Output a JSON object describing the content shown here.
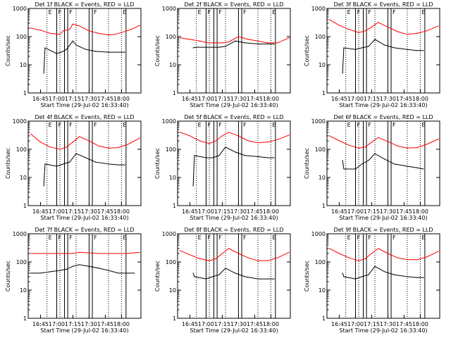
{
  "figure": {
    "common_xlabel": "Start Time (29-Jul-02 16:33:40)",
    "ylabel": "Counts/sec",
    "x_ticks": [
      "16:45",
      "17:00",
      "17:15",
      "17:30",
      "17:45",
      "18:00"
    ],
    "y_ticks": [
      "1",
      "10",
      "100",
      "1000"
    ],
    "flag_labels": [
      "E",
      "F",
      "F",
      "F",
      "E"
    ]
  },
  "chart_data": [
    {
      "type": "line",
      "title": "Det 1f BLACK = Events, RED = LLD",
      "xlabel": "Start Time (29-Jul-02 16:33:40)",
      "ylabel": "Counts/sec",
      "xlim": [
        16.56,
        18.3
      ],
      "ylim": [
        1,
        1000
      ],
      "yscale": "log",
      "series": [
        {
          "name": "LLD",
          "color": "#ff0000",
          "x": [
            16.6,
            16.75,
            16.9,
            17.05,
            17.1,
            17.2,
            17.25,
            17.35,
            17.5,
            17.65,
            17.8,
            17.9,
            18.0,
            18.15,
            18.28
          ],
          "values": [
            200,
            170,
            130,
            120,
            160,
            180,
            280,
            240,
            160,
            130,
            115,
            120,
            140,
            180,
            250
          ]
        },
        {
          "name": "Events",
          "color": "#000000",
          "x": [
            16.8,
            16.82,
            17.0,
            17.1,
            17.15,
            17.25,
            17.3,
            17.45,
            17.6,
            17.8,
            17.95,
            18.05
          ],
          "values": [
            5,
            40,
            25,
            30,
            35,
            70,
            50,
            35,
            30,
            28,
            28,
            28
          ]
        }
      ],
      "vlines_solid": [
        17.0,
        17.12,
        17.17,
        17.5,
        17.55,
        18.07
      ],
      "vlines_dotted": [
        16.85,
        17.05,
        17.3,
        17.8,
        18.0
      ]
    },
    {
      "type": "line",
      "title": "Det 2f BLACK = Events, RED = LLD",
      "xlabel": "Start Time (29-Jul-02 16:33:40)",
      "ylabel": "Counts/sec",
      "xlim": [
        16.56,
        18.3
      ],
      "ylim": [
        1,
        1000
      ],
      "yscale": "log",
      "series": [
        {
          "name": "LLD",
          "color": "#ff0000",
          "x": [
            16.6,
            16.75,
            16.9,
            17.05,
            17.15,
            17.25,
            17.35,
            17.5,
            17.65,
            17.8,
            17.95,
            18.1,
            18.28
          ],
          "values": [
            90,
            80,
            70,
            60,
            60,
            60,
            65,
            100,
            80,
            70,
            60,
            60,
            90
          ]
        },
        {
          "name": "Events",
          "color": "#000000",
          "x": [
            16.8,
            16.85,
            17.0,
            17.1,
            17.2,
            17.3,
            17.45,
            17.6,
            17.8,
            17.95,
            18.05
          ],
          "values": [
            40,
            42,
            42,
            42,
            42,
            45,
            70,
            60,
            55,
            55,
            55
          ]
        }
      ],
      "vlines_solid": [
        17.0,
        17.12,
        17.17,
        17.5,
        17.55,
        18.07
      ],
      "vlines_dotted": [
        16.85,
        17.05,
        17.3,
        17.8,
        18.0
      ]
    },
    {
      "type": "line",
      "title": "Det 3f BLACK = Events, RED = LLD",
      "xlabel": "Start Time (29-Jul-02 16:33:40)",
      "ylabel": "Counts/sec",
      "xlim": [
        16.56,
        18.3
      ],
      "ylim": [
        1,
        1000
      ],
      "yscale": "log",
      "series": [
        {
          "name": "LLD",
          "color": "#ff0000",
          "x": [
            16.6,
            16.75,
            16.9,
            17.05,
            17.15,
            17.25,
            17.35,
            17.5,
            17.65,
            17.8,
            17.95,
            18.1,
            18.28
          ],
          "values": [
            400,
            250,
            180,
            140,
            160,
            220,
            320,
            220,
            150,
            120,
            130,
            160,
            240
          ]
        },
        {
          "name": "Events",
          "color": "#000000",
          "x": [
            16.8,
            16.82,
            17.0,
            17.1,
            17.2,
            17.3,
            17.45,
            17.6,
            17.8,
            17.95,
            18.05
          ],
          "values": [
            5,
            40,
            35,
            40,
            45,
            80,
            50,
            40,
            35,
            32,
            32
          ]
        }
      ],
      "vlines_solid": [
        17.0,
        17.12,
        17.17,
        17.5,
        17.55,
        18.07
      ],
      "vlines_dotted": [
        16.85,
        17.05,
        17.3,
        17.8,
        18.0
      ]
    },
    {
      "type": "line",
      "title": "Det 4f BLACK = Events, RED = LLD",
      "xlabel": "Start Time (29-Jul-02 16:33:40)",
      "ylabel": "Counts/sec",
      "xlim": [
        16.56,
        18.3
      ],
      "ylim": [
        1,
        1000
      ],
      "yscale": "log",
      "series": [
        {
          "name": "LLD",
          "color": "#ff0000",
          "x": [
            16.6,
            16.75,
            16.9,
            17.05,
            17.15,
            17.25,
            17.35,
            17.5,
            17.65,
            17.8,
            17.95,
            18.1,
            18.28
          ],
          "values": [
            350,
            180,
            120,
            100,
            120,
            180,
            280,
            200,
            130,
            110,
            115,
            150,
            250
          ]
        },
        {
          "name": "Events",
          "color": "#000000",
          "x": [
            16.8,
            16.82,
            17.0,
            17.1,
            17.2,
            17.3,
            17.45,
            17.6,
            17.8,
            17.95,
            18.05
          ],
          "values": [
            5,
            30,
            25,
            30,
            35,
            70,
            50,
            35,
            30,
            28,
            28
          ]
        }
      ],
      "vlines_solid": [
        17.0,
        17.12,
        17.17,
        17.5,
        17.55,
        18.07
      ],
      "vlines_dotted": [
        16.85,
        17.05,
        17.3,
        17.8,
        18.0
      ]
    },
    {
      "type": "line",
      "title": "Det 5f BLACK = Events, RED = LLD",
      "xlabel": "Start Time (29-Jul-02 16:33:40)",
      "ylabel": "Counts/sec",
      "xlim": [
        16.56,
        18.3
      ],
      "ylim": [
        1,
        1000
      ],
      "yscale": "log",
      "series": [
        {
          "name": "LLD",
          "color": "#ff0000",
          "x": [
            16.6,
            16.75,
            16.9,
            17.05,
            17.15,
            17.25,
            17.35,
            17.5,
            17.65,
            17.8,
            17.95,
            18.1,
            18.28
          ],
          "values": [
            400,
            300,
            200,
            160,
            200,
            300,
            400,
            300,
            200,
            170,
            180,
            220,
            320
          ]
        },
        {
          "name": "Events",
          "color": "#000000",
          "x": [
            16.8,
            16.82,
            17.0,
            17.1,
            17.2,
            17.3,
            17.45,
            17.6,
            17.8,
            17.95,
            18.05
          ],
          "values": [
            5,
            60,
            50,
            50,
            60,
            120,
            80,
            60,
            55,
            50,
            50
          ]
        }
      ],
      "vlines_solid": [
        17.0,
        17.12,
        17.17,
        17.5,
        17.55,
        18.07
      ],
      "vlines_dotted": [
        16.85,
        17.05,
        17.3,
        17.8,
        18.0
      ]
    },
    {
      "type": "line",
      "title": "Det 6f BLACK = Events, RED = LLD",
      "xlabel": "Start Time (29-Jul-02 16:33:40)",
      "ylabel": "Counts/sec",
      "xlim": [
        16.56,
        18.3
      ],
      "ylim": [
        1,
        1000
      ],
      "yscale": "log",
      "series": [
        {
          "name": "LLD",
          "color": "#ff0000",
          "x": [
            16.6,
            16.75,
            16.9,
            17.05,
            17.15,
            17.25,
            17.35,
            17.5,
            17.65,
            17.8,
            17.95,
            18.1,
            18.28
          ],
          "values": [
            300,
            200,
            140,
            110,
            120,
            180,
            260,
            190,
            130,
            110,
            115,
            150,
            230
          ]
        },
        {
          "name": "Events",
          "color": "#000000",
          "x": [
            16.8,
            16.82,
            17.0,
            17.1,
            17.2,
            17.3,
            17.45,
            17.6,
            17.8,
            17.95,
            18.05
          ],
          "values": [
            40,
            20,
            20,
            30,
            40,
            70,
            45,
            30,
            25,
            22,
            20
          ]
        }
      ],
      "vlines_solid": [
        17.0,
        17.12,
        17.17,
        17.5,
        17.55,
        18.07
      ],
      "vlines_dotted": [
        16.85,
        17.05,
        17.3,
        17.8,
        18.0
      ]
    },
    {
      "type": "line",
      "title": "Det 7f BLACK = Events, RED = LLD",
      "xlabel": "Start Time (29-Jul-02 16:33:40)",
      "ylabel": "Counts/sec",
      "xlim": [
        16.56,
        18.3
      ],
      "ylim": [
        1,
        1000
      ],
      "yscale": "log",
      "series": [
        {
          "name": "LLD",
          "color": "#ff0000",
          "x": [
            16.6,
            16.75,
            16.9,
            17.05,
            17.15,
            17.25,
            17.35,
            17.5,
            17.65,
            17.8,
            17.95,
            18.1,
            18.28
          ],
          "values": [
            200,
            200,
            200,
            200,
            200,
            200,
            220,
            210,
            200,
            200,
            200,
            200,
            220
          ]
        },
        {
          "name": "Events",
          "color": "#000000",
          "x": [
            16.6,
            16.75,
            16.9,
            17.05,
            17.15,
            17.25,
            17.35,
            17.5,
            17.65,
            17.8,
            17.95,
            18.1,
            18.2
          ],
          "values": [
            40,
            40,
            45,
            50,
            55,
            70,
            80,
            70,
            60,
            50,
            40,
            40,
            40
          ]
        }
      ],
      "vlines_solid": [
        17.0,
        17.12,
        17.17,
        17.5,
        17.55,
        18.07
      ],
      "vlines_dotted": [
        16.85,
        17.05,
        17.3,
        17.8,
        18.0
      ]
    },
    {
      "type": "line",
      "title": "Det 8f BLACK = Events, RED = LLD",
      "xlabel": "Start Time (29-Jul-02 16:33:40)",
      "ylabel": "Counts/sec",
      "xlim": [
        16.56,
        18.3
      ],
      "ylim": [
        1,
        1000
      ],
      "yscale": "log",
      "series": [
        {
          "name": "LLD",
          "color": "#ff0000",
          "x": [
            16.6,
            16.75,
            16.9,
            17.05,
            17.15,
            17.25,
            17.35,
            17.5,
            17.65,
            17.8,
            17.95,
            18.1,
            18.28
          ],
          "values": [
            250,
            180,
            130,
            110,
            130,
            200,
            300,
            200,
            140,
            110,
            110,
            140,
            220
          ]
        },
        {
          "name": "Events",
          "color": "#000000",
          "x": [
            16.8,
            16.82,
            17.0,
            17.1,
            17.2,
            17.3,
            17.45,
            17.6,
            17.8,
            17.95,
            18.05
          ],
          "values": [
            40,
            30,
            25,
            30,
            35,
            60,
            40,
            30,
            25,
            25,
            25
          ]
        }
      ],
      "vlines_solid": [
        17.0,
        17.12,
        17.17,
        17.5,
        17.55,
        18.07
      ],
      "vlines_dotted": [
        16.85,
        17.05,
        17.3,
        17.8,
        18.0
      ]
    },
    {
      "type": "line",
      "title": "Det 9f BLACK = Events, RED = LLD",
      "xlabel": "Start Time (29-Jul-02 16:33:40)",
      "ylabel": "Counts/sec",
      "xlim": [
        16.56,
        18.3
      ],
      "ylim": [
        1,
        1000
      ],
      "yscale": "log",
      "series": [
        {
          "name": "LLD",
          "color": "#ff0000",
          "x": [
            16.6,
            16.75,
            16.9,
            17.05,
            17.15,
            17.25,
            17.35,
            17.5,
            17.65,
            17.8,
            17.95,
            18.1,
            18.28
          ],
          "values": [
            300,
            200,
            140,
            110,
            130,
            200,
            300,
            200,
            140,
            120,
            120,
            150,
            240
          ]
        },
        {
          "name": "Events",
          "color": "#000000",
          "x": [
            16.8,
            16.82,
            17.0,
            17.1,
            17.2,
            17.3,
            17.45,
            17.6,
            17.8,
            17.95,
            18.05
          ],
          "values": [
            40,
            30,
            25,
            30,
            35,
            70,
            45,
            35,
            30,
            28,
            28
          ]
        }
      ],
      "vlines_solid": [
        17.0,
        17.12,
        17.17,
        17.5,
        17.55,
        18.07
      ],
      "vlines_dotted": [
        16.85,
        17.05,
        17.3,
        17.8,
        18.0
      ]
    }
  ]
}
